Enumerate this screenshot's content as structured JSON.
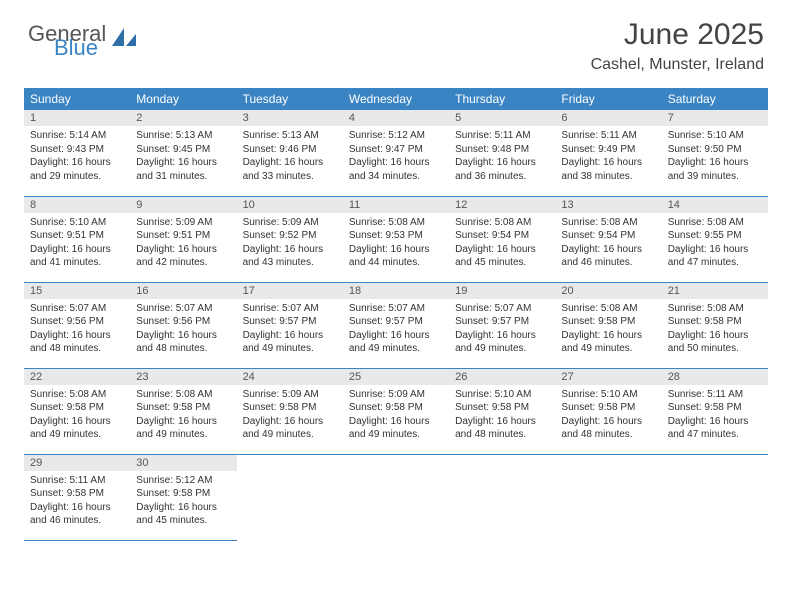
{
  "logo": {
    "text_general": "General",
    "text_blue": "Blue"
  },
  "title": "June 2025",
  "location": "Cashel, Munster, Ireland",
  "colors": {
    "header_bg": "#3a84c4",
    "header_text": "#ffffff",
    "daynum_bg": "#e8e9ea",
    "cell_border": "#3a84c4",
    "body_text": "#333333"
  },
  "weekdays": [
    "Sunday",
    "Monday",
    "Tuesday",
    "Wednesday",
    "Thursday",
    "Friday",
    "Saturday"
  ],
  "days": [
    {
      "n": 1,
      "sr": "5:14 AM",
      "ss": "9:43 PM",
      "dl": "16 hours and 29 minutes."
    },
    {
      "n": 2,
      "sr": "5:13 AM",
      "ss": "9:45 PM",
      "dl": "16 hours and 31 minutes."
    },
    {
      "n": 3,
      "sr": "5:13 AM",
      "ss": "9:46 PM",
      "dl": "16 hours and 33 minutes."
    },
    {
      "n": 4,
      "sr": "5:12 AM",
      "ss": "9:47 PM",
      "dl": "16 hours and 34 minutes."
    },
    {
      "n": 5,
      "sr": "5:11 AM",
      "ss": "9:48 PM",
      "dl": "16 hours and 36 minutes."
    },
    {
      "n": 6,
      "sr": "5:11 AM",
      "ss": "9:49 PM",
      "dl": "16 hours and 38 minutes."
    },
    {
      "n": 7,
      "sr": "5:10 AM",
      "ss": "9:50 PM",
      "dl": "16 hours and 39 minutes."
    },
    {
      "n": 8,
      "sr": "5:10 AM",
      "ss": "9:51 PM",
      "dl": "16 hours and 41 minutes."
    },
    {
      "n": 9,
      "sr": "5:09 AM",
      "ss": "9:51 PM",
      "dl": "16 hours and 42 minutes."
    },
    {
      "n": 10,
      "sr": "5:09 AM",
      "ss": "9:52 PM",
      "dl": "16 hours and 43 minutes."
    },
    {
      "n": 11,
      "sr": "5:08 AM",
      "ss": "9:53 PM",
      "dl": "16 hours and 44 minutes."
    },
    {
      "n": 12,
      "sr": "5:08 AM",
      "ss": "9:54 PM",
      "dl": "16 hours and 45 minutes."
    },
    {
      "n": 13,
      "sr": "5:08 AM",
      "ss": "9:54 PM",
      "dl": "16 hours and 46 minutes."
    },
    {
      "n": 14,
      "sr": "5:08 AM",
      "ss": "9:55 PM",
      "dl": "16 hours and 47 minutes."
    },
    {
      "n": 15,
      "sr": "5:07 AM",
      "ss": "9:56 PM",
      "dl": "16 hours and 48 minutes."
    },
    {
      "n": 16,
      "sr": "5:07 AM",
      "ss": "9:56 PM",
      "dl": "16 hours and 48 minutes."
    },
    {
      "n": 17,
      "sr": "5:07 AM",
      "ss": "9:57 PM",
      "dl": "16 hours and 49 minutes."
    },
    {
      "n": 18,
      "sr": "5:07 AM",
      "ss": "9:57 PM",
      "dl": "16 hours and 49 minutes."
    },
    {
      "n": 19,
      "sr": "5:07 AM",
      "ss": "9:57 PM",
      "dl": "16 hours and 49 minutes."
    },
    {
      "n": 20,
      "sr": "5:08 AM",
      "ss": "9:58 PM",
      "dl": "16 hours and 49 minutes."
    },
    {
      "n": 21,
      "sr": "5:08 AM",
      "ss": "9:58 PM",
      "dl": "16 hours and 50 minutes."
    },
    {
      "n": 22,
      "sr": "5:08 AM",
      "ss": "9:58 PM",
      "dl": "16 hours and 49 minutes."
    },
    {
      "n": 23,
      "sr": "5:08 AM",
      "ss": "9:58 PM",
      "dl": "16 hours and 49 minutes."
    },
    {
      "n": 24,
      "sr": "5:09 AM",
      "ss": "9:58 PM",
      "dl": "16 hours and 49 minutes."
    },
    {
      "n": 25,
      "sr": "5:09 AM",
      "ss": "9:58 PM",
      "dl": "16 hours and 49 minutes."
    },
    {
      "n": 26,
      "sr": "5:10 AM",
      "ss": "9:58 PM",
      "dl": "16 hours and 48 minutes."
    },
    {
      "n": 27,
      "sr": "5:10 AM",
      "ss": "9:58 PM",
      "dl": "16 hours and 48 minutes."
    },
    {
      "n": 28,
      "sr": "5:11 AM",
      "ss": "9:58 PM",
      "dl": "16 hours and 47 minutes."
    },
    {
      "n": 29,
      "sr": "5:11 AM",
      "ss": "9:58 PM",
      "dl": "16 hours and 46 minutes."
    },
    {
      "n": 30,
      "sr": "5:12 AM",
      "ss": "9:58 PM",
      "dl": "16 hours and 45 minutes."
    }
  ],
  "labels": {
    "sunrise": "Sunrise:",
    "sunset": "Sunset:",
    "daylight": "Daylight:"
  }
}
